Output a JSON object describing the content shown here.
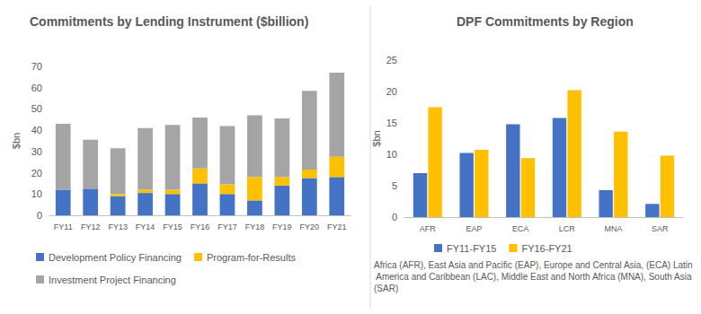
{
  "chart_data": [
    {
      "type": "bar",
      "title": "Commitments by Lending Instrument ($billion)",
      "y_label": "$bn",
      "categories": [
        "FY11",
        "FY12",
        "FY13",
        "FY14",
        "FY15",
        "FY16",
        "FY17",
        "FY18",
        "FY19",
        "FY20",
        "FY21"
      ],
      "series": [
        {
          "name": "Development Policy Financing",
          "color": "#4472c4",
          "values": [
            12,
            12.5,
            9,
            10.5,
            10,
            15,
            10,
            7,
            14,
            17.5,
            18
          ]
        },
        {
          "name": "Program-for-Results",
          "color": "#ffc000",
          "values": [
            0,
            0,
            1,
            1.5,
            2,
            7,
            4.5,
            11,
            4,
            4,
            9.5
          ]
        },
        {
          "name": "Investment Project Financing",
          "color": "#a5a5a5",
          "values": [
            31,
            23,
            21.5,
            29,
            30.5,
            24,
            27.5,
            29,
            27.5,
            37,
            39.5
          ]
        }
      ],
      "stacked": true,
      "ylim": [
        0,
        70
      ],
      "yticks": [
        0,
        10,
        20,
        30,
        40,
        50,
        60,
        70
      ],
      "grid": false,
      "legend": "bottom"
    },
    {
      "type": "bar",
      "title": "DPF Commitments by Region",
      "y_label": "$bn",
      "categories": [
        "AFR",
        "EAP",
        "ECA",
        "LCR",
        "MNA",
        "SAR"
      ],
      "series": [
        {
          "name": "FY11-FY15",
          "color": "#4472c4",
          "values": [
            7,
            10.2,
            14.8,
            15.8,
            4.3,
            2.1
          ]
        },
        {
          "name": "FY16-FY21",
          "color": "#ffc000",
          "values": [
            17.5,
            10.7,
            9.4,
            20.2,
            13.6,
            9.8
          ]
        }
      ],
      "stacked": false,
      "ylim": [
        0,
        25
      ],
      "yticks": [
        0,
        5,
        10,
        15,
        20,
        25
      ],
      "grid": false,
      "legend": "bottom",
      "annotations": [
        "Africa (AFR), East Asia and Pacific (EAP), Europe and Central Asia, (ECA) Latin America and Caribbean (LAC), Middle East and North Africa (MNA), South Asia (SAR)"
      ]
    }
  ]
}
